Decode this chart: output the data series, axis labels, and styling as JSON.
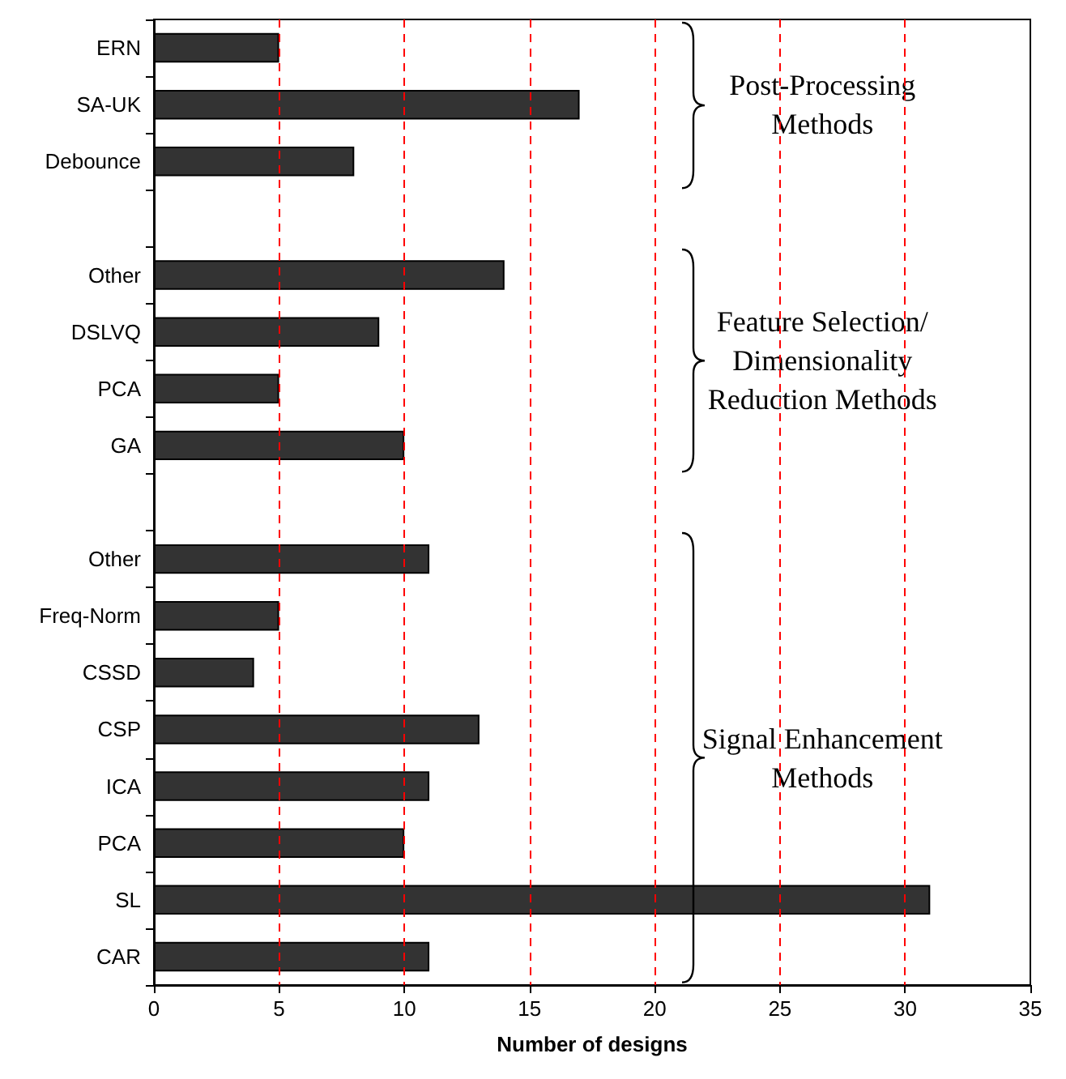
{
  "chart_data": {
    "type": "bar",
    "orientation": "horizontal",
    "xlabel": "Number of designs",
    "categories": [
      "ERN",
      "SA-UK",
      "Debounce",
      null,
      "Other",
      "DSLVQ",
      "PCA",
      "GA",
      null,
      "Other",
      "Freq-Norm",
      "CSSD",
      "CSP",
      "ICA",
      "PCA",
      "SL",
      "CAR"
    ],
    "values": [
      5,
      17,
      8,
      null,
      14,
      9,
      5,
      10,
      null,
      11,
      5,
      4,
      13,
      11,
      10,
      31,
      11
    ],
    "color": "#333333",
    "xlim": [
      0,
      35
    ],
    "xticks": [
      0,
      5,
      10,
      15,
      20,
      25,
      30,
      35
    ],
    "grid": "x",
    "annotations": [
      "Post-Processing\nMethods",
      "Feature Selection/\nDimensionality\nReduction Methods",
      "Signal Enhancement\nMethods"
    ]
  }
}
